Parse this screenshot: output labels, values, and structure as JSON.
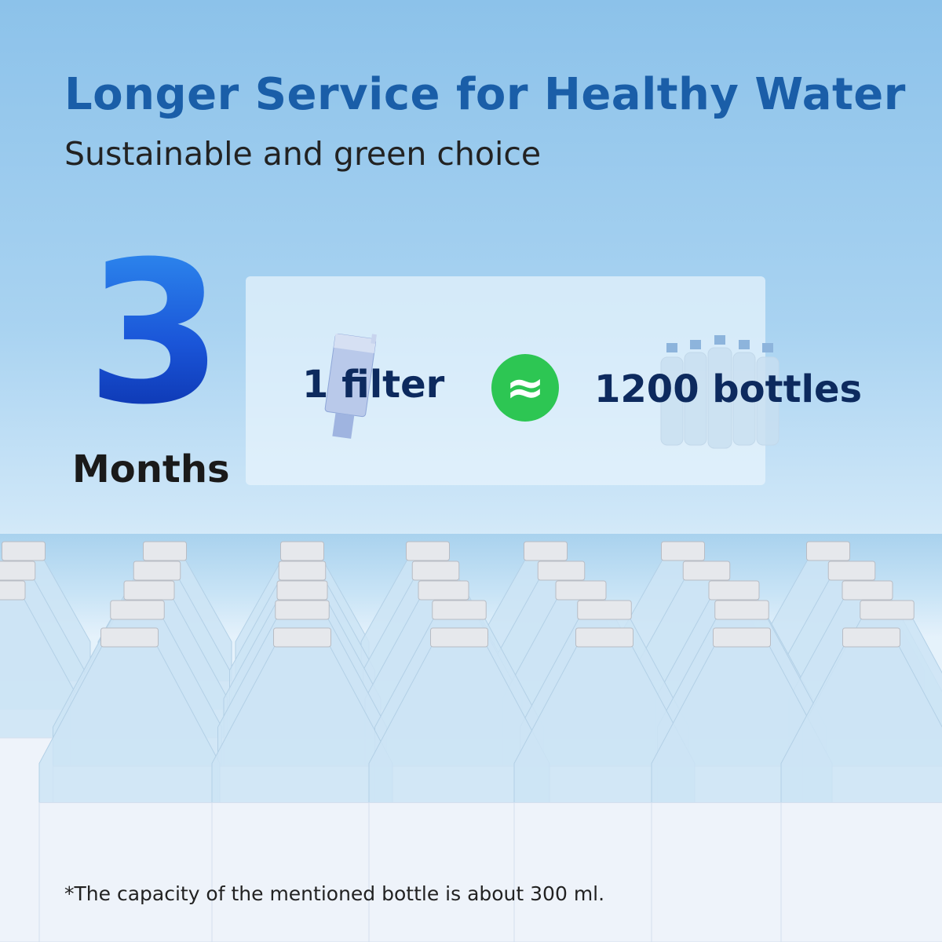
{
  "header": {
    "title": "Longer Service for Healthy Water",
    "subtitle": "Sustainable and green choice"
  },
  "duration": {
    "number": "3",
    "unit": "Months"
  },
  "comparison": {
    "left_label": "1 filter",
    "symbol": "≈",
    "right_label": "1200 bottles",
    "left_icon": "filter-cartridge-icon",
    "right_icon": "water-bottles-icon"
  },
  "colors": {
    "title": "#1a5ea8",
    "accent_green": "#2dc653",
    "label": "#0d2a5e"
  },
  "footnote": "*The capacity of the mentioned bottle is about 300 ml."
}
